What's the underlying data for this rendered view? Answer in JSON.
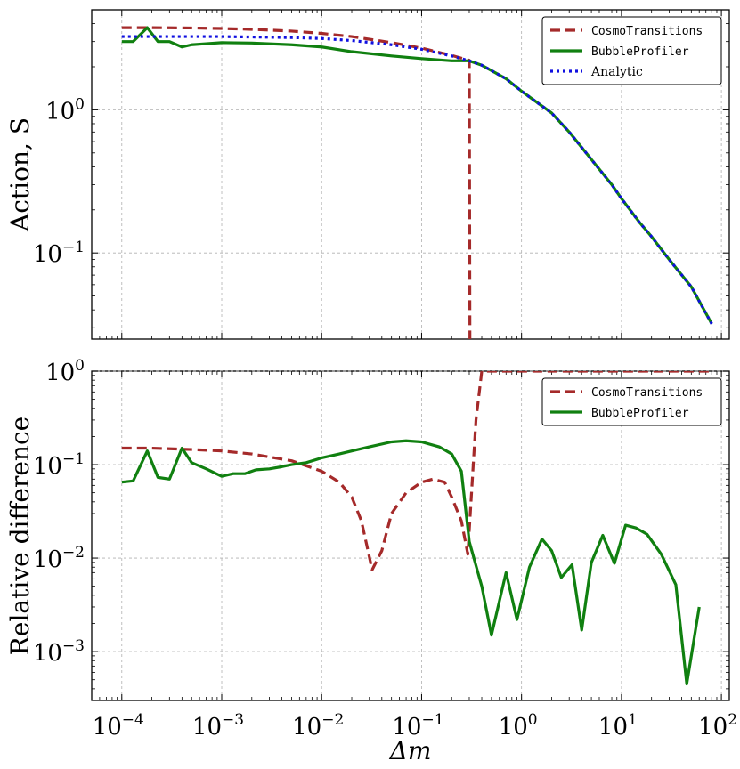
{
  "chart_data": [
    {
      "type": "line",
      "title": "",
      "xlabel": "",
      "ylabel": "Action, S",
      "xscale": "log",
      "yscale": "log",
      "xlim": [
        5e-05,
        120
      ],
      "ylim": [
        0.025,
        5
      ],
      "xticks": [],
      "yticks": [
        {
          "value": 1,
          "base": "10",
          "exp": "0"
        },
        {
          "value": 0.1,
          "base": "10",
          "exp": "−1"
        }
      ],
      "grid": true,
      "legend_position": "top-right",
      "series": [
        {
          "name": "CosmoTransitions",
          "style": "dashed",
          "color": "#a52a2a",
          "points": [
            [
              0.0001,
              3.75
            ],
            [
              0.00015,
              3.75
            ],
            [
              0.0002,
              3.75
            ],
            [
              0.0003,
              3.74
            ],
            [
              0.0005,
              3.73
            ],
            [
              0.001,
              3.7
            ],
            [
              0.002,
              3.65
            ],
            [
              0.005,
              3.55
            ],
            [
              0.01,
              3.42
            ],
            [
              0.02,
              3.25
            ],
            [
              0.05,
              2.95
            ],
            [
              0.1,
              2.7
            ],
            [
              0.2,
              2.4
            ],
            [
              0.3,
              2.22
            ],
            [
              0.305,
              0.01
            ]
          ]
        },
        {
          "name": "BubbleProfiler",
          "style": "solid",
          "color": "#108010",
          "points": [
            [
              0.0001,
              3.0
            ],
            [
              0.00013,
              3.0
            ],
            [
              0.00018,
              3.75
            ],
            [
              0.00023,
              3.0
            ],
            [
              0.0003,
              3.0
            ],
            [
              0.0004,
              2.75
            ],
            [
              0.0005,
              2.85
            ],
            [
              0.0007,
              2.9
            ],
            [
              0.001,
              2.95
            ],
            [
              0.002,
              2.93
            ],
            [
              0.005,
              2.85
            ],
            [
              0.01,
              2.75
            ],
            [
              0.02,
              2.55
            ],
            [
              0.05,
              2.38
            ],
            [
              0.1,
              2.28
            ],
            [
              0.2,
              2.2
            ],
            [
              0.3,
              2.2
            ],
            [
              0.4,
              2.05
            ],
            [
              0.7,
              1.65
            ],
            [
              1.0,
              1.35
            ],
            [
              2.0,
              0.95
            ],
            [
              3.0,
              0.7
            ],
            [
              5.0,
              0.45
            ],
            [
              8.0,
              0.3
            ],
            [
              10,
              0.24
            ],
            [
              15,
              0.165
            ],
            [
              20,
              0.13
            ],
            [
              30,
              0.09
            ],
            [
              50,
              0.058
            ],
            [
              80,
              0.032
            ]
          ]
        },
        {
          "name": "Analytic",
          "style": "dotted",
          "color": "#1010e0",
          "points": [
            [
              0.0001,
              3.25
            ],
            [
              0.001,
              3.25
            ],
            [
              0.005,
              3.2
            ],
            [
              0.01,
              3.15
            ],
            [
              0.02,
              3.05
            ],
            [
              0.05,
              2.85
            ],
            [
              0.1,
              2.65
            ],
            [
              0.2,
              2.38
            ],
            [
              0.3,
              2.2
            ],
            [
              0.4,
              2.05
            ],
            [
              0.7,
              1.65
            ],
            [
              1.0,
              1.35
            ],
            [
              2.0,
              0.95
            ],
            [
              3.0,
              0.7
            ],
            [
              5.0,
              0.45
            ],
            [
              8.0,
              0.3
            ],
            [
              10,
              0.24
            ],
            [
              15,
              0.165
            ],
            [
              20,
              0.13
            ],
            [
              30,
              0.09
            ],
            [
              50,
              0.058
            ],
            [
              80,
              0.032
            ]
          ]
        }
      ]
    },
    {
      "type": "line",
      "title": "",
      "xlabel": "Δm",
      "ylabel": "Relative difference",
      "xscale": "log",
      "yscale": "log",
      "xlim": [
        5e-05,
        120
      ],
      "ylim": [
        0.0003,
        1
      ],
      "xticks": [
        {
          "value": 0.0001,
          "base": "10",
          "exp": "−4"
        },
        {
          "value": 0.001,
          "base": "10",
          "exp": "−3"
        },
        {
          "value": 0.01,
          "base": "10",
          "exp": "−2"
        },
        {
          "value": 0.1,
          "base": "10",
          "exp": "−1"
        },
        {
          "value": 1,
          "base": "10",
          "exp": "0"
        },
        {
          "value": 10,
          "base": "10",
          "exp": "1"
        },
        {
          "value": 100,
          "base": "10",
          "exp": "2"
        }
      ],
      "yticks": [
        {
          "value": 1,
          "base": "10",
          "exp": "0"
        },
        {
          "value": 0.1,
          "base": "10",
          "exp": "−1"
        },
        {
          "value": 0.01,
          "base": "10",
          "exp": "−2"
        },
        {
          "value": 0.001,
          "base": "10",
          "exp": "−3"
        }
      ],
      "grid": true,
      "legend_position": "top-right",
      "series": [
        {
          "name": "CosmoTransitions",
          "style": "dashed",
          "color": "#a52a2a",
          "points": [
            [
              0.0001,
              0.15
            ],
            [
              0.0002,
              0.15
            ],
            [
              0.0005,
              0.145
            ],
            [
              0.001,
              0.14
            ],
            [
              0.002,
              0.13
            ],
            [
              0.005,
              0.11
            ],
            [
              0.01,
              0.085
            ],
            [
              0.015,
              0.065
            ],
            [
              0.02,
              0.045
            ],
            [
              0.025,
              0.025
            ],
            [
              0.032,
              0.0075
            ],
            [
              0.04,
              0.012
            ],
            [
              0.05,
              0.03
            ],
            [
              0.07,
              0.05
            ],
            [
              0.1,
              0.065
            ],
            [
              0.13,
              0.07
            ],
            [
              0.17,
              0.065
            ],
            [
              0.2,
              0.045
            ],
            [
              0.25,
              0.025
            ],
            [
              0.29,
              0.011
            ],
            [
              0.3,
              0.02
            ],
            [
              0.35,
              0.3
            ],
            [
              0.4,
              1.0
            ],
            [
              1.0,
              1.0
            ],
            [
              10,
              1.0
            ],
            [
              80,
              1.0
            ]
          ]
        },
        {
          "name": "BubbleProfiler",
          "style": "solid",
          "color": "#108010",
          "points": [
            [
              0.0001,
              0.065
            ],
            [
              0.00013,
              0.067
            ],
            [
              0.00018,
              0.14
            ],
            [
              0.00023,
              0.073
            ],
            [
              0.0003,
              0.07
            ],
            [
              0.0004,
              0.15
            ],
            [
              0.0005,
              0.105
            ],
            [
              0.0007,
              0.09
            ],
            [
              0.001,
              0.075
            ],
            [
              0.0013,
              0.08
            ],
            [
              0.0017,
              0.08
            ],
            [
              0.0022,
              0.088
            ],
            [
              0.003,
              0.09
            ],
            [
              0.004,
              0.095
            ],
            [
              0.005,
              0.1
            ],
            [
              0.007,
              0.105
            ],
            [
              0.01,
              0.118
            ],
            [
              0.015,
              0.13
            ],
            [
              0.02,
              0.14
            ],
            [
              0.03,
              0.155
            ],
            [
              0.05,
              0.175
            ],
            [
              0.07,
              0.18
            ],
            [
              0.1,
              0.175
            ],
            [
              0.15,
              0.155
            ],
            [
              0.2,
              0.13
            ],
            [
              0.25,
              0.085
            ],
            [
              0.3,
              0.015
            ],
            [
              0.4,
              0.005
            ],
            [
              0.5,
              0.0015
            ],
            [
              0.7,
              0.007
            ],
            [
              0.9,
              0.0022
            ],
            [
              1.2,
              0.008
            ],
            [
              1.6,
              0.016
            ],
            [
              2.0,
              0.012
            ],
            [
              2.5,
              0.0062
            ],
            [
              3.2,
              0.0085
            ],
            [
              4.0,
              0.0017
            ],
            [
              5.0,
              0.009
            ],
            [
              6.5,
              0.0175
            ],
            [
              8.5,
              0.0088
            ],
            [
              11,
              0.0225
            ],
            [
              14,
              0.021
            ],
            [
              18,
              0.018
            ],
            [
              25,
              0.011
            ],
            [
              35,
              0.0052
            ],
            [
              45,
              0.00045
            ],
            [
              60,
              0.003
            ]
          ]
        }
      ]
    }
  ]
}
